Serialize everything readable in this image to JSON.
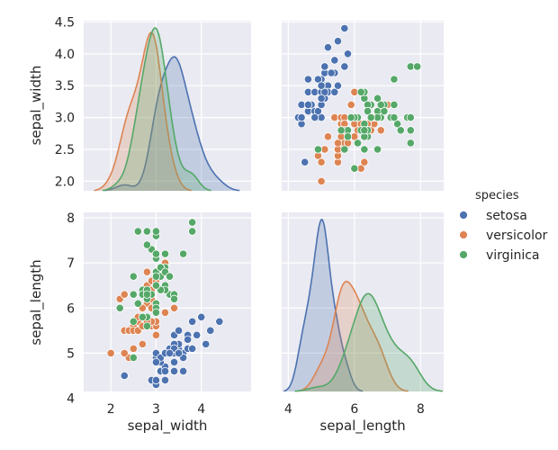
{
  "chart_data": {
    "type": "pairplot",
    "variables": [
      "sepal_width",
      "sepal_length"
    ],
    "hue": "species",
    "legend": {
      "title": "species",
      "position": "right",
      "entries": [
        {
          "name": "setosa",
          "color": "#4c72b0"
        },
        {
          "name": "versicolor",
          "color": "#dd8452"
        },
        {
          "name": "virginica",
          "color": "#55a868"
        }
      ]
    },
    "axes": {
      "sepal_width": {
        "label": "sepal_width",
        "ticks": [
          2,
          3,
          4
        ],
        "kde_ticks": [
          2.0,
          2.5,
          3.0,
          3.5,
          4.0,
          4.5
        ],
        "range": [
          1.4,
          5.1
        ]
      },
      "sepal_length": {
        "label": "sepal_length",
        "ticks": [
          4,
          5,
          6,
          7,
          8
        ],
        "kde_ticks": [
          4,
          6,
          8
        ],
        "range": [
          3.8,
          8.7
        ]
      }
    },
    "series": [
      {
        "name": "setosa",
        "color": "#4c72b0",
        "sepal_length": [
          5.1,
          4.9,
          4.7,
          4.6,
          5.0,
          5.4,
          4.6,
          5.0,
          4.4,
          4.9,
          5.4,
          4.8,
          4.8,
          4.3,
          5.8,
          5.7,
          5.4,
          5.1,
          5.7,
          5.1,
          5.4,
          5.1,
          4.6,
          5.1,
          4.8,
          5.0,
          5.0,
          5.2,
          5.2,
          4.7,
          4.8,
          5.4,
          5.2,
          5.5,
          4.9,
          5.0,
          5.5,
          4.9,
          4.4,
          5.1,
          5.0,
          4.5,
          4.4,
          5.0,
          5.1,
          4.8,
          5.1,
          4.6,
          5.3,
          5.0
        ],
        "sepal_width": [
          3.5,
          3.0,
          3.2,
          3.1,
          3.6,
          3.9,
          3.4,
          3.4,
          2.9,
          3.1,
          3.7,
          3.4,
          3.0,
          3.0,
          4.0,
          4.4,
          3.9,
          3.5,
          3.8,
          3.8,
          3.4,
          3.7,
          3.6,
          3.3,
          3.4,
          3.0,
          3.4,
          3.5,
          3.4,
          3.2,
          3.1,
          3.4,
          4.1,
          4.2,
          3.1,
          3.2,
          3.5,
          3.6,
          3.0,
          3.4,
          3.5,
          2.3,
          3.2,
          3.5,
          3.8,
          3.0,
          3.8,
          3.2,
          3.7,
          3.3
        ]
      },
      {
        "name": "versicolor",
        "color": "#dd8452",
        "sepal_length": [
          7.0,
          6.4,
          6.9,
          5.5,
          6.5,
          5.7,
          6.3,
          4.9,
          6.6,
          5.2,
          5.0,
          5.9,
          6.0,
          6.1,
          5.6,
          6.7,
          5.6,
          5.8,
          6.2,
          5.6,
          5.9,
          6.1,
          6.3,
          6.1,
          6.4,
          6.6,
          6.8,
          6.7,
          6.0,
          5.7,
          5.5,
          5.5,
          5.8,
          6.0,
          5.4,
          6.0,
          6.7,
          6.3,
          5.6,
          5.5,
          5.5,
          6.1,
          5.8,
          5.0,
          5.6,
          5.7,
          5.7,
          6.2,
          5.1,
          5.7
        ],
        "sepal_width": [
          3.2,
          3.2,
          3.1,
          2.3,
          2.8,
          2.8,
          3.3,
          2.4,
          2.9,
          2.7,
          2.0,
          3.0,
          2.2,
          2.9,
          2.9,
          3.1,
          3.0,
          2.7,
          2.2,
          2.5,
          3.2,
          2.8,
          2.5,
          2.8,
          2.9,
          3.0,
          2.8,
          3.0,
          2.9,
          2.6,
          2.4,
          2.4,
          2.7,
          2.7,
          3.0,
          3.4,
          3.1,
          2.3,
          3.0,
          2.5,
          2.6,
          3.0,
          2.6,
          2.3,
          2.7,
          3.0,
          2.9,
          2.9,
          2.5,
          2.8
        ]
      },
      {
        "name": "virginica",
        "color": "#55a868",
        "sepal_length": [
          6.3,
          5.8,
          7.1,
          6.3,
          6.5,
          7.6,
          4.9,
          7.3,
          6.7,
          7.2,
          6.5,
          6.4,
          6.8,
          5.7,
          5.8,
          6.4,
          6.5,
          7.7,
          7.7,
          6.0,
          6.9,
          5.6,
          7.7,
          6.3,
          6.7,
          7.2,
          6.2,
          6.1,
          6.4,
          7.2,
          7.4,
          7.9,
          6.4,
          6.3,
          6.1,
          7.7,
          6.3,
          6.4,
          6.0,
          6.9,
          6.7,
          6.9,
          5.8,
          6.8,
          6.7,
          6.7,
          6.3,
          6.5,
          6.2,
          5.9
        ],
        "sepal_width": [
          3.3,
          2.7,
          3.0,
          2.9,
          3.0,
          3.0,
          2.5,
          2.9,
          2.5,
          3.6,
          3.2,
          2.7,
          3.0,
          2.5,
          2.8,
          3.2,
          3.0,
          3.8,
          2.6,
          2.2,
          3.2,
          2.8,
          2.8,
          2.7,
          3.3,
          3.2,
          2.8,
          3.0,
          2.8,
          3.0,
          2.8,
          3.8,
          2.8,
          2.8,
          2.6,
          3.0,
          3.4,
          3.1,
          3.0,
          3.1,
          3.1,
          3.1,
          2.7,
          3.2,
          3.3,
          3.0,
          2.5,
          3.0,
          3.4,
          3.0
        ]
      }
    ]
  }
}
